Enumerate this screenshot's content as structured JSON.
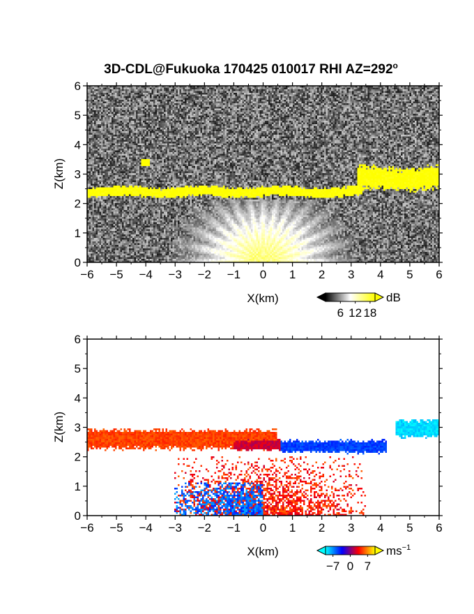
{
  "title": "3D-CDL@Fukuoka 170425 010017 RHI AZ=292",
  "title_superscript": "o",
  "chart_data": [
    {
      "type": "heatmap",
      "variable": "reflectivity",
      "xlabel": "X(km)",
      "ylabel": "Z(km)",
      "xlim": [
        -6,
        6
      ],
      "ylim": [
        0,
        6
      ],
      "x_ticks": [
        "-6",
        "-5",
        "-4",
        "-3",
        "-2",
        "-1",
        "0",
        "1",
        "2",
        "3",
        "4",
        "5",
        "6"
      ],
      "y_ticks": [
        "0",
        "1",
        "2",
        "3",
        "4",
        "5",
        "6"
      ],
      "colorbar": {
        "unit": "dB",
        "ticks": [
          "6",
          "12",
          "18"
        ],
        "range": [
          0,
          20
        ],
        "colors": [
          "#000000",
          "#ffffff",
          "#ffff00"
        ]
      },
      "features": [
        {
          "kind": "strong_echo_layer",
          "x_range": [
            -6,
            3.4
          ],
          "z_range": [
            2.2,
            2.6
          ],
          "value": 20
        },
        {
          "kind": "strong_echo_layer",
          "x_range": [
            3.2,
            6
          ],
          "z_range": [
            2.4,
            3.3
          ],
          "value": 20
        },
        {
          "kind": "speckle",
          "x": -4.0,
          "z": 3.4,
          "value": 20
        },
        {
          "kind": "near_field_fan",
          "x_range": [
            -3,
            3
          ],
          "z_range": [
            0,
            2
          ],
          "value": 12
        }
      ]
    },
    {
      "type": "heatmap",
      "variable": "doppler_velocity",
      "xlabel": "X(km)",
      "ylabel": "Z(km)",
      "xlim": [
        -6,
        6
      ],
      "ylim": [
        0,
        6
      ],
      "x_ticks": [
        "-6",
        "-5",
        "-4",
        "-3",
        "-2",
        "-1",
        "0",
        "1",
        "2",
        "3",
        "4",
        "5",
        "6"
      ],
      "y_ticks": [
        "0",
        "1",
        "2",
        "3",
        "4",
        "5",
        "6"
      ],
      "colorbar": {
        "unit": "ms",
        "unit_exponent": "−1",
        "ticks": [
          "−7",
          "0",
          "7"
        ],
        "range": [
          -10,
          10
        ],
        "colors": [
          "#00ffff",
          "#0000ff",
          "#ff0000",
          "#ffff00"
        ]
      },
      "features": [
        {
          "kind": "layer",
          "x_range": [
            -6,
            0.5
          ],
          "z_range": [
            2.2,
            3.0
          ],
          "value": 5
        },
        {
          "kind": "layer",
          "x_range": [
            -1,
            0.6
          ],
          "z_range": [
            2.2,
            2.6
          ],
          "value": 2
        },
        {
          "kind": "layer",
          "x_range": [
            0.6,
            4.2
          ],
          "z_range": [
            2.1,
            2.6
          ],
          "value": -5
        },
        {
          "kind": "layer",
          "x_range": [
            4.5,
            6
          ],
          "z_range": [
            2.6,
            3.3
          ],
          "value": -9
        },
        {
          "kind": "lower_region",
          "x_range": [
            -3,
            3.5
          ],
          "z_range": [
            0,
            2
          ],
          "value": 4
        },
        {
          "kind": "lower_region",
          "x_range": [
            -3,
            0
          ],
          "z_range": [
            0,
            1.1
          ],
          "value": -6
        }
      ]
    }
  ]
}
